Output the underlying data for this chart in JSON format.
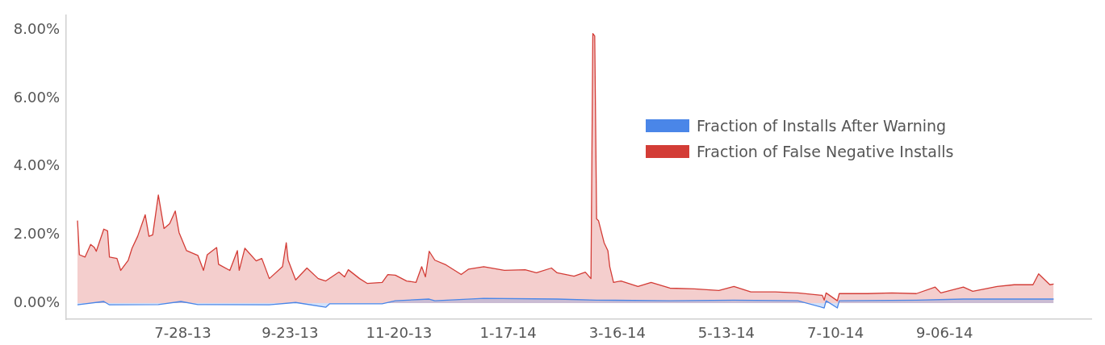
{
  "chart_data": {
    "type": "area",
    "xlim": [
      "2013-05-27",
      "2014-11-23"
    ],
    "xticks": [
      {
        "value": "2013-07-28",
        "label": "7-28-13"
      },
      {
        "value": "2013-09-23",
        "label": "9-23-13"
      },
      {
        "value": "2013-11-20",
        "label": "11-20-13"
      },
      {
        "value": "2014-01-17",
        "label": "1-17-14"
      },
      {
        "value": "2014-03-16",
        "label": "3-16-14"
      },
      {
        "value": "2014-05-13",
        "label": "5-13-14"
      },
      {
        "value": "2014-07-10",
        "label": "7-10-14"
      },
      {
        "value": "2014-09-06",
        "label": "9-06-14"
      }
    ],
    "ylim": [
      -0.47,
      8.44
    ],
    "yticks": [
      {
        "value": 0,
        "label": "0.00%"
      },
      {
        "value": 2,
        "label": "2.00%"
      },
      {
        "value": 4,
        "label": "4.00%"
      },
      {
        "value": 6,
        "label": "6.00%"
      },
      {
        "value": 8,
        "label": "8.00%"
      }
    ],
    "grid": false,
    "legend": "right",
    "series": [
      {
        "name": "Fraction of Installs After Warning",
        "color": "#4a86e8",
        "x": [
          "2013-06-02",
          "2013-06-16",
          "2013-06-19",
          "2013-07-15",
          "2013-07-27",
          "2013-08-05",
          "2013-09-12",
          "2013-09-26",
          "2013-10-12",
          "2013-10-14",
          "2013-11-11",
          "2013-11-18",
          "2013-12-06",
          "2013-12-09",
          "2014-01-04",
          "2014-02-12",
          "2014-03-05",
          "2014-04-13",
          "2014-05-17",
          "2014-06-20",
          "2014-07-04",
          "2014-07-05",
          "2014-07-11",
          "2014-07-12",
          "2014-08-22",
          "2014-09-16",
          "2014-10-13",
          "2014-11-03"
        ],
        "values": [
          -0.05,
          0.05,
          -0.05,
          -0.04,
          0.05,
          -0.04,
          -0.05,
          0.02,
          -0.12,
          -0.02,
          -0.02,
          0.07,
          0.12,
          0.07,
          0.14,
          0.12,
          0.09,
          0.07,
          0.09,
          0.07,
          -0.14,
          0.07,
          -0.14,
          0.07,
          0.09,
          0.12,
          0.12,
          0.12
        ]
      },
      {
        "name": "Fraction of False Negative Installs",
        "color": "#d33c36",
        "x": [
          "2013-06-02",
          "2013-06-03",
          "2013-06-06",
          "2013-06-09",
          "2013-06-11",
          "2013-06-12",
          "2013-06-16",
          "2013-06-18",
          "2013-06-19",
          "2013-06-23",
          "2013-06-25",
          "2013-06-29",
          "2013-07-01",
          "2013-07-04",
          "2013-07-08",
          "2013-07-10",
          "2013-07-12",
          "2013-07-15",
          "2013-07-18",
          "2013-07-21",
          "2013-07-24",
          "2013-07-26",
          "2013-07-30",
          "2013-08-05",
          "2013-08-08",
          "2013-08-10",
          "2013-08-15",
          "2013-08-16",
          "2013-08-22",
          "2013-08-26",
          "2013-08-27",
          "2013-08-30",
          "2013-09-05",
          "2013-09-08",
          "2013-09-12",
          "2013-09-19",
          "2013-09-21",
          "2013-09-22",
          "2013-09-26",
          "2013-10-02",
          "2013-10-08",
          "2013-10-12",
          "2013-10-19",
          "2013-10-22",
          "2013-10-24",
          "2013-10-30",
          "2013-11-03",
          "2013-11-11",
          "2013-11-14",
          "2013-11-18",
          "2013-11-24",
          "2013-11-29",
          "2013-12-02",
          "2013-12-04",
          "2013-12-06",
          "2013-12-09",
          "2013-12-15",
          "2013-12-23",
          "2013-12-27",
          "2014-01-04",
          "2014-01-15",
          "2014-01-26",
          "2014-02-01",
          "2014-02-09",
          "2014-02-12",
          "2014-02-21",
          "2014-02-27",
          "2014-03-02",
          "2014-03-03",
          "2014-03-04",
          "2014-03-05",
          "2014-03-06",
          "2014-03-09",
          "2014-03-11",
          "2014-03-12",
          "2014-03-14",
          "2014-03-18",
          "2014-03-27",
          "2014-04-03",
          "2014-04-13",
          "2014-04-26",
          "2014-05-09",
          "2014-05-17",
          "2014-05-26",
          "2014-06-08",
          "2014-06-20",
          "2014-07-03",
          "2014-07-04",
          "2014-07-05",
          "2014-07-11",
          "2014-07-12",
          "2014-07-27",
          "2014-08-09",
          "2014-08-22",
          "2014-09-01",
          "2014-09-04",
          "2014-09-16",
          "2014-09-21",
          "2014-10-04",
          "2014-10-13",
          "2014-10-23",
          "2014-10-26",
          "2014-11-01",
          "2014-11-03"
        ],
        "values": [
          2.42,
          1.42,
          1.35,
          1.72,
          1.63,
          1.52,
          2.17,
          2.12,
          1.35,
          1.31,
          0.96,
          1.26,
          1.61,
          1.96,
          2.59,
          1.96,
          2.0,
          3.17,
          2.19,
          2.33,
          2.7,
          2.07,
          1.54,
          1.4,
          0.96,
          1.42,
          1.63,
          1.14,
          0.96,
          1.54,
          0.96,
          1.61,
          1.24,
          1.31,
          0.72,
          1.07,
          1.77,
          1.26,
          0.68,
          1.03,
          0.72,
          0.65,
          0.91,
          0.77,
          0.98,
          0.72,
          0.58,
          0.61,
          0.84,
          0.82,
          0.65,
          0.61,
          1.07,
          0.77,
          1.52,
          1.26,
          1.12,
          0.84,
          1.0,
          1.07,
          0.96,
          0.98,
          0.89,
          1.03,
          0.89,
          0.79,
          0.91,
          0.72,
          7.9,
          7.83,
          2.47,
          2.42,
          1.77,
          1.54,
          1.07,
          0.61,
          0.65,
          0.49,
          0.61,
          0.44,
          0.42,
          0.37,
          0.49,
          0.33,
          0.33,
          0.3,
          0.23,
          0.09,
          0.3,
          0.07,
          0.28,
          0.28,
          0.3,
          0.28,
          0.47,
          0.3,
          0.47,
          0.35,
          0.49,
          0.54,
          0.54,
          0.86,
          0.54,
          0.56
        ]
      }
    ]
  }
}
